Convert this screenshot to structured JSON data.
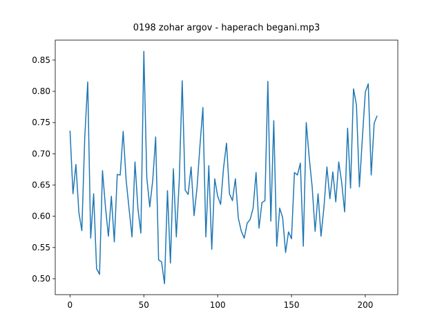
{
  "chart_data": {
    "type": "line",
    "title": "0198 zohar argov - haperach begani.mp3",
    "color": "#1f77b4",
    "x": [
      0,
      2,
      4,
      6,
      8,
      10,
      12,
      14,
      16,
      18,
      20,
      22,
      24,
      26,
      28,
      30,
      32,
      34,
      36,
      38,
      40,
      42,
      44,
      46,
      48,
      50,
      52,
      54,
      56,
      58,
      60,
      62,
      64,
      66,
      68,
      70,
      72,
      74,
      76,
      78,
      80,
      82,
      84,
      86,
      88,
      90,
      92,
      94,
      96,
      98,
      100,
      102,
      104,
      106,
      108,
      110,
      112,
      114,
      116,
      118,
      120,
      122,
      124,
      126,
      128,
      130,
      132,
      134,
      136,
      138,
      140,
      142,
      144,
      146,
      148,
      150,
      152,
      154,
      156,
      158,
      160,
      162,
      164,
      166,
      168,
      170,
      172,
      174,
      176,
      178,
      180,
      182,
      184,
      186,
      188,
      190,
      192,
      194,
      196,
      198,
      200,
      202,
      204,
      206,
      208
    ],
    "values": [
      0.737,
      0.636,
      0.683,
      0.606,
      0.577,
      0.727,
      0.815,
      0.565,
      0.636,
      0.516,
      0.507,
      0.673,
      0.615,
      0.568,
      0.632,
      0.559,
      0.667,
      0.666,
      0.736,
      0.658,
      0.612,
      0.567,
      0.687,
      0.612,
      0.573,
      0.864,
      0.662,
      0.615,
      0.657,
      0.727,
      0.53,
      0.527,
      0.492,
      0.641,
      0.525,
      0.676,
      0.567,
      0.658,
      0.817,
      0.642,
      0.635,
      0.679,
      0.601,
      0.645,
      0.713,
      0.774,
      0.567,
      0.681,
      0.547,
      0.66,
      0.632,
      0.619,
      0.678,
      0.717,
      0.636,
      0.625,
      0.66,
      0.597,
      0.576,
      0.565,
      0.589,
      0.595,
      0.613,
      0.67,
      0.581,
      0.622,
      0.625,
      0.816,
      0.592,
      0.753,
      0.552,
      0.613,
      0.598,
      0.542,
      0.575,
      0.564,
      0.67,
      0.666,
      0.685,
      0.552,
      0.75,
      0.694,
      0.647,
      0.576,
      0.636,
      0.568,
      0.615,
      0.679,
      0.628,
      0.671,
      0.623,
      0.687,
      0.654,
      0.607,
      0.741,
      0.645,
      0.804,
      0.778,
      0.647,
      0.725,
      0.799,
      0.812,
      0.666,
      0.749,
      0.761
    ],
    "xlim": [
      -10,
      222
    ],
    "ylim": [
      0.4745,
      0.882
    ],
    "xticks": [
      0,
      50,
      100,
      150,
      200
    ],
    "yticks": [
      {
        "value": 0.5,
        "label": "0.50"
      },
      0.55,
      {
        "value": 0.6,
        "label": "0.60"
      },
      0.65,
      {
        "value": 0.7,
        "label": "0.70"
      },
      0.75,
      {
        "value": 0.8,
        "label": "0.80"
      },
      0.85
    ]
  }
}
